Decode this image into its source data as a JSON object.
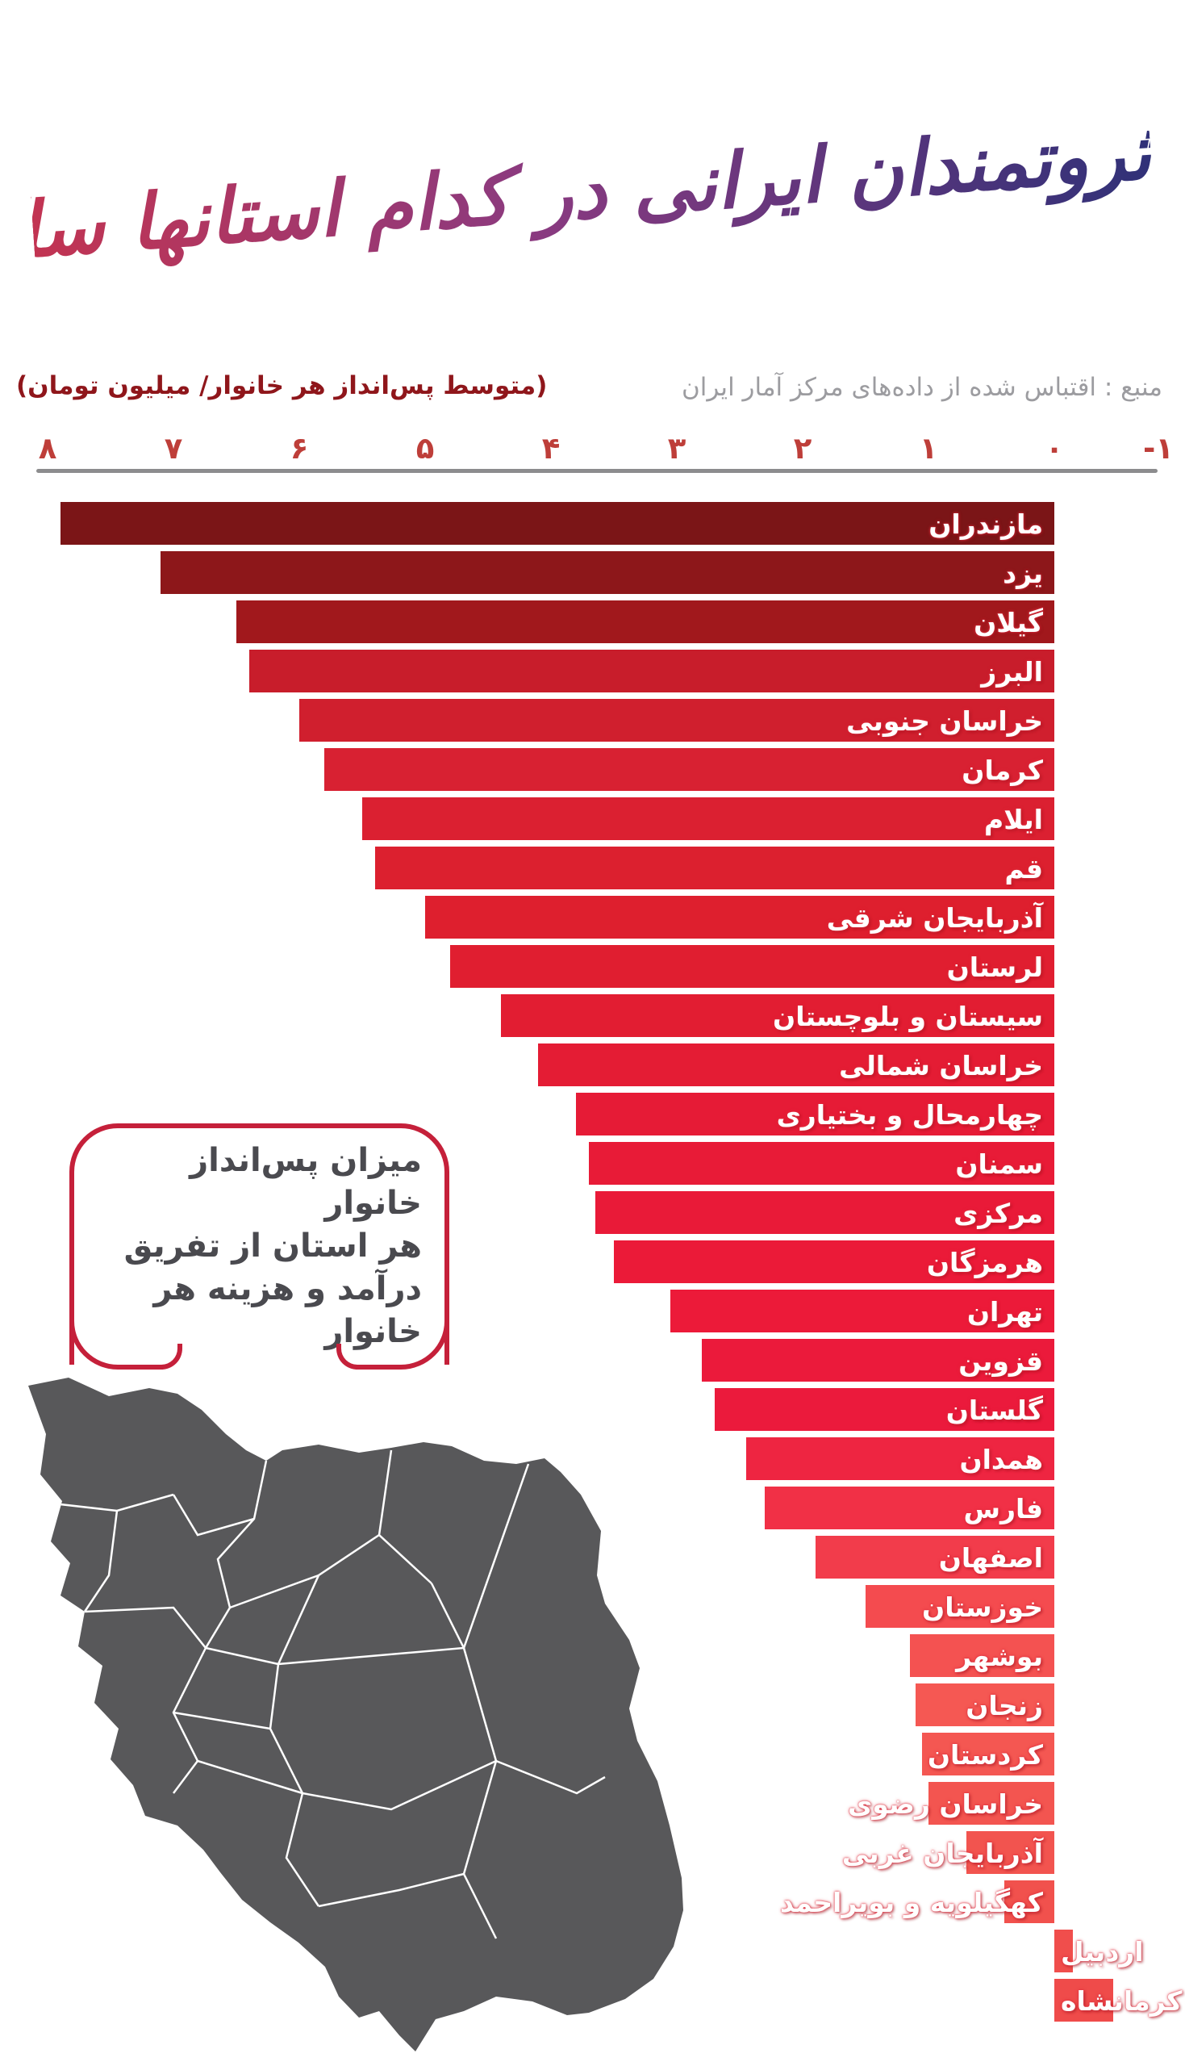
{
  "title": {
    "text": "ثروتمندان ایرانی در کدام استانها ساکنند؟",
    "gradient": [
      "#C23452",
      "#8A3A80",
      "#303178"
    ]
  },
  "source": "منبع : اقتباس شده از داده‌های مرکز آمار ایران",
  "source_color": "#9C9CA0",
  "axis": {
    "label": "(متوسط پس‌انداز هر خانوار/ میلیون تومان)",
    "label_color": "#8F161B",
    "tick_labels": [
      "۸",
      "۷",
      "۶",
      "۵",
      "۴",
      "۳",
      "۲",
      "۱",
      "۰",
      "-۱"
    ],
    "tick_values": [
      8,
      7,
      6,
      5,
      4,
      3,
      2,
      1,
      0,
      -1
    ],
    "tick_color": "#BE3E39",
    "line_color": "#8C8C8E",
    "min": -1,
    "max": 8
  },
  "note": {
    "lines": [
      "میزان پس‌انداز خانوار",
      "هر استان از تفریق",
      "درآمد و هزینه هر خانوار"
    ],
    "border_color": "#C5203A",
    "text_color": "#4A4A4F"
  },
  "map": {
    "fill": "#58585A",
    "border": "#FFFFFF"
  },
  "chart_data": {
    "type": "bar",
    "orientation": "horizontal-rtl",
    "title": "ثروتمندان ایرانی در کدام استانها ساکنند؟",
    "xlabel": "(متوسط پس‌انداز هر خانوار/ میلیون تومان)",
    "unit": "میلیون تومان",
    "xlim": [
      8,
      -1
    ],
    "grid": false,
    "legend": "none",
    "categories": [
      "مازندران",
      "یزد",
      "گیلان",
      "البرز",
      "خراسان جنوبی",
      "کرمان",
      "ایلام",
      "قم",
      "آذربایجان شرقی",
      "لرستان",
      "سیستان و بلوچستان",
      "خراسان شمالی",
      "چهارمحال و بختیاری",
      "سمنان",
      "مرکزی",
      "هرمزگان",
      "تهران",
      "قزوین",
      "گلستان",
      "همدان",
      "فارس",
      "اصفهان",
      "خوزستان",
      "بوشهر",
      "زنجان",
      "کردستان",
      "خراسان رضوی",
      "آذربایجان غربی",
      "کهگیلویه و بویراحمد",
      "اردبیل",
      "کرمانشاه"
    ],
    "values": [
      7.9,
      7.1,
      6.5,
      6.4,
      6.0,
      5.8,
      5.5,
      5.4,
      5.0,
      4.8,
      4.4,
      4.1,
      3.8,
      3.7,
      3.65,
      3.5,
      3.05,
      2.8,
      2.7,
      2.45,
      2.3,
      1.9,
      1.5,
      1.15,
      1.1,
      1.05,
      1.0,
      0.7,
      0.4,
      -0.15,
      -0.47
    ],
    "color_stops": [
      [
        0.0,
        "#7B1517"
      ],
      [
        0.035,
        "#8E171A"
      ],
      [
        0.07,
        "#A3181C"
      ],
      [
        0.1,
        "#C81D2B"
      ],
      [
        0.17,
        "#D92132"
      ],
      [
        0.27,
        "#DE1F2E"
      ],
      [
        0.4,
        "#E61B36"
      ],
      [
        0.53,
        "#EC1A39"
      ],
      [
        0.6,
        "#EB1A3C"
      ],
      [
        0.65,
        "#F02A44"
      ],
      [
        0.7,
        "#F23C4B"
      ],
      [
        0.74,
        "#F44E50"
      ],
      [
        0.8,
        "#F55853"
      ],
      [
        0.9,
        "#F2544F"
      ],
      [
        1.0,
        "#EF4B4A"
      ]
    ]
  }
}
